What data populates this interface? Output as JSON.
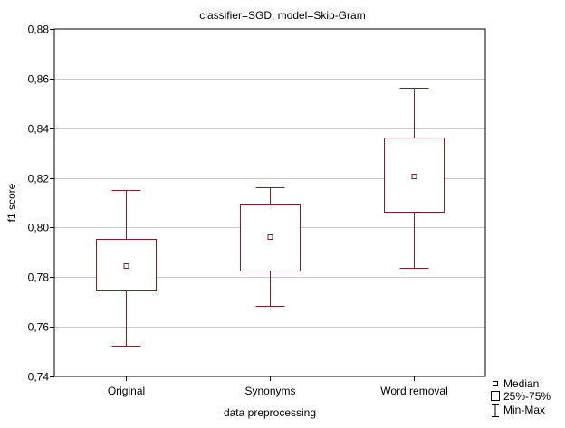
{
  "chart_data": {
    "type": "box",
    "title": "classifier=SGD, model=Skip-Gram",
    "xlabel": "data preprocessing",
    "ylabel": "f1 score",
    "ylim": [
      0.74,
      0.88
    ],
    "yticks": [
      0.74,
      0.76,
      0.78,
      0.8,
      0.82,
      0.84,
      0.86,
      0.88
    ],
    "ytick_labels": [
      "0,74",
      "0,76",
      "0,78",
      "0,80",
      "0,82",
      "0,84",
      "0,86",
      "0,88"
    ],
    "grid": "horizontal",
    "legend_position": "bottom-right",
    "color": "#7f1f26",
    "categories": [
      "Original",
      "Synonyms",
      "Word removal"
    ],
    "boxes": [
      {
        "category": "Original",
        "min": 0.7525,
        "q1": 0.7745,
        "median": 0.7845,
        "q3": 0.7955,
        "max": 0.8152
      },
      {
        "category": "Synonyms",
        "min": 0.7683,
        "q1": 0.7828,
        "median": 0.7962,
        "q3": 0.8093,
        "max": 0.8162
      },
      {
        "category": "Word removal",
        "min": 0.7837,
        "q1": 0.8062,
        "median": 0.8205,
        "q3": 0.8362,
        "max": 0.8562
      }
    ],
    "legend": {
      "median": "Median",
      "box": "25%-75%",
      "whisker": "Min-Max"
    }
  }
}
